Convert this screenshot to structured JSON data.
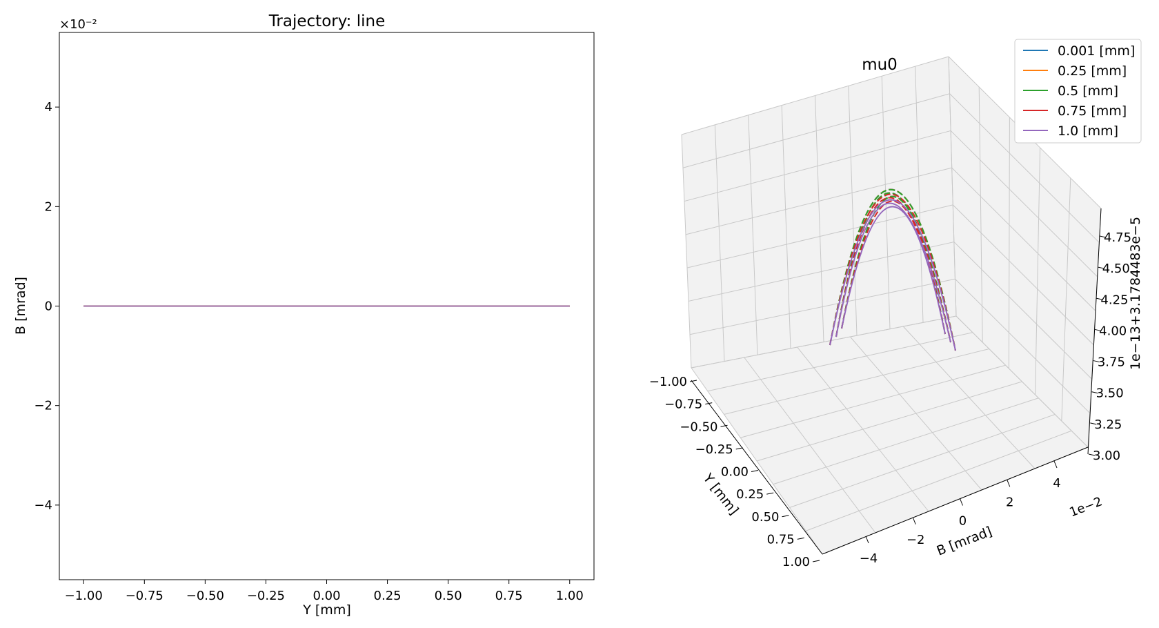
{
  "chart_data": [
    {
      "type": "line",
      "title": "Trajectory: line",
      "xlabel": "Y [mm]",
      "ylabel": "B [mrad]",
      "y_scale_label": "×10⁻²",
      "xlim": [
        -1.1,
        1.1
      ],
      "ylim": [
        -5.5,
        5.5
      ],
      "xticks": [
        "−1.00",
        "−0.75",
        "−0.50",
        "−0.25",
        "0.00",
        "0.25",
        "0.50",
        "0.75",
        "1.00"
      ],
      "xtick_values": [
        -1.0,
        -0.75,
        -0.5,
        -0.25,
        0.0,
        0.25,
        0.5,
        0.75,
        1.0
      ],
      "yticks": [
        "−4",
        "−2",
        "0",
        "2",
        "4"
      ],
      "ytick_values": [
        -4,
        -2,
        0,
        2,
        4
      ],
      "grid": false,
      "series": [
        {
          "x": [
            -1.0,
            1.0
          ],
          "y": [
            0,
            0
          ],
          "color": "#1f77b4"
        },
        {
          "x": [
            -1.0,
            1.0
          ],
          "y": [
            0,
            0
          ],
          "color": "#ff7f0e"
        },
        {
          "x": [
            -1.0,
            1.0
          ],
          "y": [
            0,
            0
          ],
          "color": "#2ca02c"
        },
        {
          "x": [
            -1.0,
            1.0
          ],
          "y": [
            0,
            0
          ],
          "color": "#d62728"
        },
        {
          "x": [
            -1.0,
            1.0
          ],
          "y": [
            0,
            0
          ],
          "color": "#9467bd"
        }
      ]
    },
    {
      "type": "line",
      "projection": "3d",
      "title": "mu0",
      "xlabel": "Y [mm]",
      "ylabel": "B [mrad]",
      "zlabel": "1e−13+3.1784483e−5",
      "yscale_label": "1e−2",
      "xticks": [
        "−1.00",
        "−0.75",
        "−0.50",
        "−0.25",
        "0.00",
        "0.25",
        "0.50",
        "0.75",
        "1.00"
      ],
      "yticks": [
        "−4",
        "−2",
        "0",
        "2",
        "4"
      ],
      "zticks": [
        "3.00",
        "3.25",
        "3.50",
        "3.75",
        "4.00",
        "4.25",
        "4.50",
        "4.75"
      ],
      "grid": true,
      "legend_position": "top-right",
      "series": [
        {
          "name": "0.001 [mm]",
          "color": "#1f77b4",
          "peak": 4.75,
          "ends": 3.0
        },
        {
          "name": "0.25 [mm]",
          "color": "#ff7f0e",
          "peak": 4.76,
          "ends": 3.0
        },
        {
          "name": " 0.5 [mm]",
          "color": "#2ca02c",
          "peak": 4.77,
          "ends": 3.0
        },
        {
          "name": "0.75 [mm]",
          "color": "#d62728",
          "peak": 4.73,
          "ends": 3.0
        },
        {
          "name": " 1.0 [mm]",
          "color": "#9467bd",
          "peak": 4.68,
          "ends": 3.0
        }
      ]
    }
  ]
}
